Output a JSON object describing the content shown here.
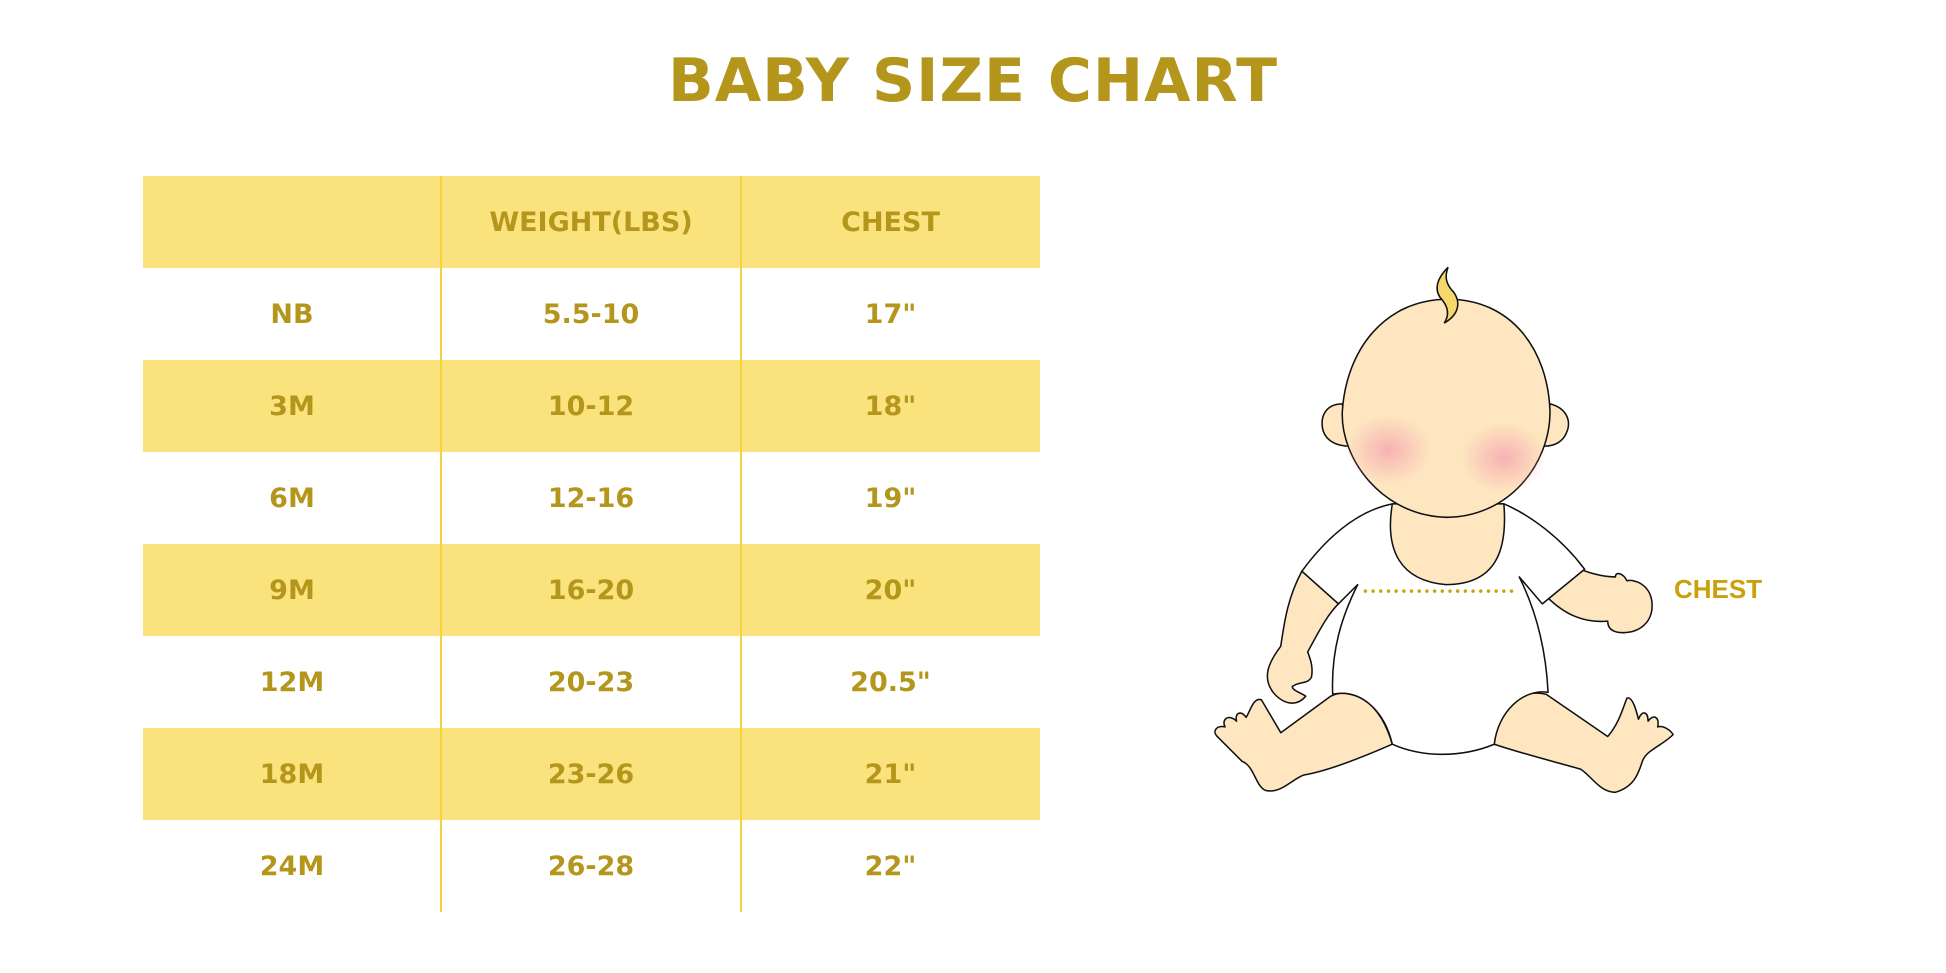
{
  "title": "BABY SIZE CHART",
  "table": {
    "headers": [
      "",
      "WEIGHT(LBS)",
      "CHEST"
    ],
    "rows": [
      [
        "NB",
        "5.5-10",
        "17\""
      ],
      [
        "3M",
        "10-12",
        "18\""
      ],
      [
        "6M",
        "12-16",
        "19\""
      ],
      [
        "9M",
        "16-20",
        "20\""
      ],
      [
        "12M",
        "20-23",
        "20.5\""
      ],
      [
        "18M",
        "23-26",
        "21\""
      ],
      [
        "24M",
        "26-28",
        "22\""
      ]
    ]
  },
  "illustration": {
    "chest_label": "CHEST"
  },
  "colors": {
    "text": "#b5961c",
    "band": "#fae27c",
    "divider": "#f5d33d",
    "skin": "#fde6c0"
  }
}
